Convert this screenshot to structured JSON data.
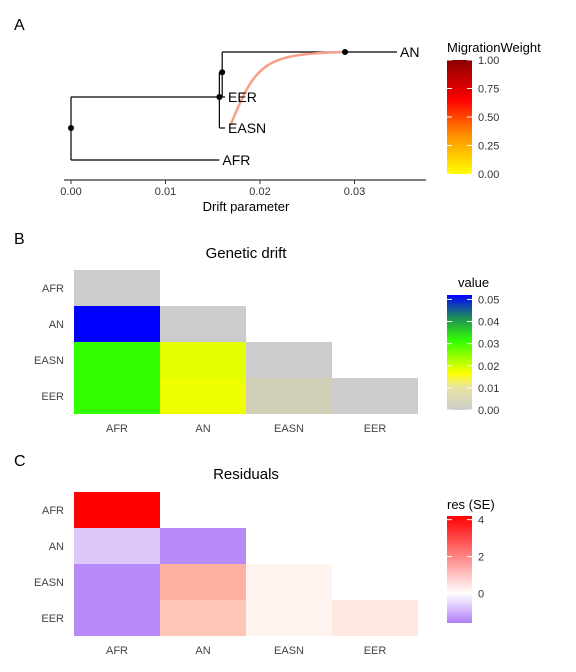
{
  "chart_data": [
    {
      "type": "tree",
      "panel_label": "A",
      "xlabel": "Drift parameter",
      "xlim": [
        -0.0005,
        0.038
      ],
      "x_ticks": [
        0.0,
        0.01,
        0.02,
        0.03
      ],
      "x_tick_labels": [
        "0.00",
        "0.01",
        "0.02",
        "0.03"
      ],
      "tips": [
        {
          "label": "AN",
          "x": 0.0345,
          "y": 4
        },
        {
          "label": "EER",
          "x": 0.0163,
          "y": 3
        },
        {
          "label": "EASN",
          "x": 0.0163,
          "y": 2
        },
        {
          "label": "AFR",
          "x": 0.0157,
          "y": 1
        }
      ],
      "nodes": [
        {
          "x": 0.0,
          "y": 2.0
        },
        {
          "x": 0.0157,
          "y": 3.0
        },
        {
          "x": 0.016,
          "y": 3.55
        },
        {
          "x": 0.029,
          "y": 4.0
        }
      ],
      "edges": [
        {
          "x0": 0.0,
          "y0": 1.0,
          "x1": 0.0,
          "y1": 3.0
        },
        {
          "x0": 0.0,
          "y0": 1.0,
          "x1": 0.0157,
          "y1": 1.0
        },
        {
          "x0": 0.0,
          "y0": 3.0,
          "x1": 0.0157,
          "y1": 3.0
        },
        {
          "x0": 0.0157,
          "y0": 2.0,
          "x1": 0.0157,
          "y1": 3.55
        },
        {
          "x0": 0.0157,
          "y0": 2.0,
          "x1": 0.0163,
          "y1": 2.0
        },
        {
          "x0": 0.016,
          "y0": 3.0,
          "x1": 0.016,
          "y1": 4.0
        },
        {
          "x0": 0.016,
          "y0": 3.0,
          "x1": 0.0163,
          "y1": 3.0
        },
        {
          "x0": 0.016,
          "y0": 4.0,
          "x1": 0.0345,
          "y1": 4.0
        }
      ],
      "migration": {
        "from_x": 0.029,
        "from_y": 4.0,
        "to_x": 0.0163,
        "to_y": 2.0,
        "weight": 0.42,
        "color": "#f7a08a"
      },
      "legend": {
        "title": "MigrationWeight",
        "placement": "right",
        "ticks": [
          1.0,
          0.75,
          0.5,
          0.25,
          0.0
        ],
        "tick_labels": [
          "1.00",
          "0.75",
          "0.50",
          "0.25",
          "0.00"
        ],
        "colors": [
          "#ffff00",
          "#ff8c00",
          "#ff0000",
          "#8b0000"
        ]
      }
    },
    {
      "type": "heatmap",
      "panel_label": "B",
      "title": "Genetic drift",
      "x_categories": [
        "AFR",
        "AN",
        "EASN",
        "EER"
      ],
      "y_categories": [
        "AFR",
        "AN",
        "EASN",
        "EER"
      ],
      "cells": [
        {
          "x": "AFR",
          "y": "AFR",
          "value": null,
          "color": "#cccccc"
        },
        {
          "x": "AFR",
          "y": "AN",
          "value": 0.052,
          "color": "#0000ff"
        },
        {
          "x": "AN",
          "y": "AN",
          "value": null,
          "color": "#cccccc"
        },
        {
          "x": "AFR",
          "y": "EASN",
          "value": 0.031,
          "color": "#33ff00"
        },
        {
          "x": "AN",
          "y": "EASN",
          "value": 0.013,
          "color": "#e6ff00"
        },
        {
          "x": "EASN",
          "y": "EASN",
          "value": null,
          "color": "#cccccc"
        },
        {
          "x": "AFR",
          "y": "EER",
          "value": 0.03,
          "color": "#33ff00"
        },
        {
          "x": "AN",
          "y": "EER",
          "value": 0.012,
          "color": "#eeff00"
        },
        {
          "x": "EASN",
          "y": "EER",
          "value": 0.001,
          "color": "#d1ceb7"
        },
        {
          "x": "EER",
          "y": "EER",
          "value": null,
          "color": "#cccccc"
        }
      ],
      "legend": {
        "title": "value",
        "placement": "right",
        "ticks": [
          0.05,
          0.04,
          0.03,
          0.02,
          0.01,
          0.0
        ],
        "tick_labels": [
          "0.05",
          "0.04",
          "0.03",
          "0.02",
          "0.01",
          "0.00"
        ],
        "range": [
          0.0,
          0.052
        ],
        "colors": [
          "#cccccc",
          "#ffff00",
          "#33ff00",
          "#0000ff"
        ]
      }
    },
    {
      "type": "heatmap",
      "panel_label": "C",
      "title": "Residuals",
      "x_categories": [
        "AFR",
        "AN",
        "EASN",
        "EER"
      ],
      "y_categories": [
        "AFR",
        "AN",
        "EASN",
        "EER"
      ],
      "cells": [
        {
          "x": "AFR",
          "y": "AFR",
          "value": 4.2,
          "color": "#ff0000"
        },
        {
          "x": "AFR",
          "y": "AN",
          "value": -0.7,
          "color": "#dcc8fb"
        },
        {
          "x": "AN",
          "y": "AN",
          "value": -1.5,
          "color": "#b88af8"
        },
        {
          "x": "AFR",
          "y": "EASN",
          "value": -1.5,
          "color": "#b88af8"
        },
        {
          "x": "AN",
          "y": "EASN",
          "value": 1.3,
          "color": "#ffb1a1"
        },
        {
          "x": "EASN",
          "y": "EASN",
          "value": 0.15,
          "color": "#fff3f0"
        },
        {
          "x": "AFR",
          "y": "EER",
          "value": -1.5,
          "color": "#b88af8"
        },
        {
          "x": "AN",
          "y": "EER",
          "value": 1.0,
          "color": "#ffc5b7"
        },
        {
          "x": "EASN",
          "y": "EER",
          "value": 0.15,
          "color": "#fff3f0"
        },
        {
          "x": "EER",
          "y": "EER",
          "value": 0.35,
          "color": "#ffe6df"
        }
      ],
      "legend": {
        "title": "res (SE)",
        "placement": "right",
        "ticks": [
          4,
          2,
          0
        ],
        "tick_labels": [
          "4",
          "2",
          "0"
        ],
        "range": [
          -1.6,
          4.2
        ],
        "colors": [
          "#b07ff7",
          "#ffffff",
          "#ff0000"
        ]
      }
    }
  ]
}
